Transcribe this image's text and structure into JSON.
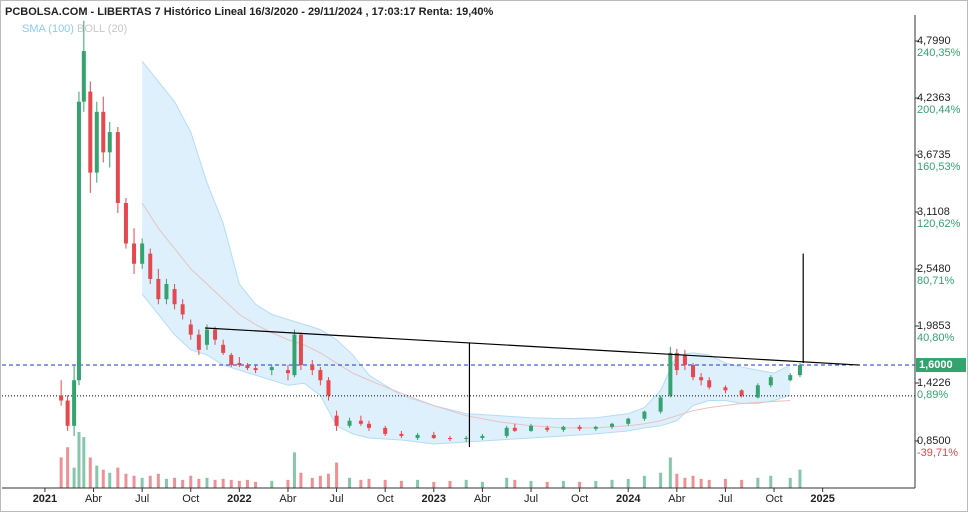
{
  "chart_data": {
    "type": "candlestick",
    "title": "PCBOLSA.COM - LIBERTAS 7 Histórico Lineal 16/3/2020 - 29/11/2024 , 17:03:17 Renta: 19,40%",
    "up_color": "#34a36f",
    "down_color": "#e5484d",
    "x": [
      1.0,
      1.4,
      1.8,
      2.1,
      2.4,
      2.8,
      3.2,
      3.6,
      4.0,
      4.5,
      5.0,
      5.5,
      6.0,
      6.5,
      7.0,
      7.5,
      8.0,
      8.5,
      9.0,
      9.5,
      10.0,
      10.5,
      11.0,
      11.5,
      12.0,
      12.5,
      13.0,
      14.0,
      15.0,
      15.4,
      15.8,
      16.5,
      17.0,
      17.5,
      18.0,
      18.8,
      19.5,
      20.0,
      21.0,
      22.0,
      23.0,
      24.0,
      25.0,
      26.0,
      27.0,
      28.5,
      29.0,
      30.0,
      31.0,
      32.0,
      33.0,
      34.0,
      35.0,
      36.0,
      37.0,
      38.0,
      38.6,
      39.0,
      39.5,
      40.0,
      40.5,
      41.0,
      42.0,
      43.0,
      44.0,
      44.8,
      46.0,
      46.6
    ],
    "open": [
      1.3,
      1.25,
      1.0,
      1.45,
      4.2,
      4.3,
      3.5,
      4.1,
      3.7,
      3.9,
      3.2,
      2.8,
      2.6,
      2.7,
      2.45,
      2.25,
      2.35,
      2.2,
      2.0,
      1.9,
      1.8,
      1.95,
      1.8,
      1.7,
      1.62,
      1.6,
      1.57,
      1.55,
      1.55,
      1.5,
      1.9,
      1.6,
      1.55,
      1.45,
      1.1,
      1.0,
      1.05,
      1.02,
      0.98,
      0.92,
      0.88,
      0.91,
      0.88,
      0.87,
      0.88,
      0.9,
      0.98,
      0.95,
      0.98,
      0.96,
      0.99,
      0.97,
      0.99,
      1.02,
      1.07,
      1.14,
      1.3,
      1.72,
      1.7,
      1.6,
      1.48,
      1.45,
      1.38,
      1.35,
      1.28,
      1.4,
      1.45,
      1.5
    ],
    "high": [
      1.45,
      1.3,
      1.6,
      4.3,
      5.0,
      4.4,
      4.2,
      4.25,
      4.0,
      3.95,
      3.25,
      2.95,
      2.85,
      2.75,
      2.55,
      2.45,
      2.4,
      2.25,
      2.05,
      1.95,
      2.0,
      1.98,
      1.85,
      1.72,
      1.68,
      1.62,
      1.6,
      1.6,
      1.6,
      1.95,
      1.92,
      1.65,
      1.58,
      1.48,
      1.15,
      1.08,
      1.1,
      1.05,
      1.0,
      0.95,
      0.93,
      0.94,
      0.9,
      0.9,
      0.92,
      1.0,
      1.02,
      1.02,
      1.0,
      1.0,
      1.01,
      1.0,
      1.03,
      1.08,
      1.15,
      1.3,
      1.78,
      1.76,
      1.75,
      1.62,
      1.52,
      1.48,
      1.4,
      1.36,
      1.42,
      1.5,
      1.52,
      1.62
    ],
    "low": [
      1.2,
      0.95,
      0.9,
      1.4,
      4.1,
      3.3,
      3.4,
      3.6,
      3.55,
      3.1,
      2.75,
      2.5,
      2.55,
      2.4,
      2.2,
      2.2,
      2.15,
      2.05,
      1.85,
      1.7,
      1.75,
      1.8,
      1.7,
      1.58,
      1.58,
      1.55,
      1.52,
      1.5,
      1.45,
      1.48,
      1.55,
      1.5,
      1.4,
      1.25,
      0.95,
      0.98,
      1.0,
      0.95,
      0.9,
      0.88,
      0.86,
      0.87,
      0.85,
      0.84,
      0.86,
      0.88,
      0.94,
      0.94,
      0.94,
      0.94,
      0.95,
      0.95,
      0.97,
      1.0,
      1.05,
      1.12,
      1.28,
      1.5,
      1.55,
      1.45,
      1.4,
      1.36,
      1.32,
      1.28,
      1.27,
      1.38,
      1.44,
      1.48
    ],
    "close": [
      1.25,
      1.0,
      1.45,
      4.2,
      4.7,
      3.5,
      4.1,
      3.7,
      3.9,
      3.2,
      2.8,
      2.6,
      2.8,
      2.45,
      2.25,
      2.4,
      2.2,
      2.1,
      1.9,
      1.75,
      1.95,
      1.85,
      1.72,
      1.6,
      1.6,
      1.57,
      1.55,
      1.58,
      1.52,
      1.9,
      1.6,
      1.55,
      1.45,
      1.3,
      1.0,
      1.05,
      1.02,
      0.98,
      0.92,
      0.9,
      0.91,
      0.88,
      0.87,
      0.88,
      0.9,
      0.98,
      0.95,
      1.0,
      0.96,
      0.99,
      0.97,
      0.99,
      1.02,
      1.07,
      1.14,
      1.28,
      1.72,
      1.55,
      1.6,
      1.48,
      1.45,
      1.38,
      1.35,
      1.3,
      1.4,
      1.48,
      1.5,
      1.6
    ],
    "volume": [
      30,
      40,
      20,
      55,
      50,
      30,
      22,
      18,
      15,
      20,
      14,
      12,
      10,
      12,
      14,
      9,
      10,
      8,
      12,
      9,
      10,
      8,
      9,
      8,
      7,
      8,
      6,
      7,
      8,
      35,
      15,
      10,
      12,
      14,
      25,
      10,
      8,
      9,
      8,
      7,
      8,
      6,
      7,
      8,
      6,
      10,
      8,
      7,
      6,
      7,
      6,
      7,
      8,
      9,
      12,
      15,
      30,
      14,
      10,
      12,
      9,
      8,
      9,
      8,
      10,
      12,
      10,
      18
    ],
    "xlim": [
      -2.65,
      53.7
    ],
    "xticks": [
      {
        "value": 0,
        "label": "2021"
      },
      {
        "value": 3,
        "label": "Abr"
      },
      {
        "value": 6,
        "label": "Jul"
      },
      {
        "value": 9,
        "label": "Oct"
      },
      {
        "value": 12,
        "label": "2022"
      },
      {
        "value": 15,
        "label": "Abr"
      },
      {
        "value": 18,
        "label": "Jul"
      },
      {
        "value": 21,
        "label": "Oct"
      },
      {
        "value": 24,
        "label": "2023"
      },
      {
        "value": 27,
        "label": "Abr"
      },
      {
        "value": 30,
        "label": "Jul"
      },
      {
        "value": 33,
        "label": "Oct"
      },
      {
        "value": 36,
        "label": "2024"
      },
      {
        "value": 39,
        "label": "Abr"
      },
      {
        "value": 42,
        "label": "Jul"
      },
      {
        "value": 45,
        "label": "Oct"
      },
      {
        "value": 48,
        "label": "2025"
      }
    ],
    "ylim": [
      0.386,
      5.056
    ],
    "yticks": [
      {
        "value": 4.799,
        "label": "4,7990"
      },
      {
        "value": 4.2363,
        "label": "4,2363"
      },
      {
        "value": 3.6735,
        "label": "3,6735"
      },
      {
        "value": 3.1108,
        "label": "3,1108"
      },
      {
        "value": 2.548,
        "label": "2,5480"
      },
      {
        "value": 1.9853,
        "label": "1,9853"
      },
      {
        "value": 1.4226,
        "label": "1,4226"
      },
      {
        "value": 0.85,
        "label": "0,8500"
      }
    ],
    "y2lim": [
      -72.6,
      258.6
    ],
    "y2ticks": [
      {
        "value": 240.35,
        "label": "240,35%"
      },
      {
        "value": 200.44,
        "label": "200,44%"
      },
      {
        "value": 160.53,
        "label": "160,53%"
      },
      {
        "value": 120.62,
        "label": "120,62%"
      },
      {
        "value": 80.71,
        "label": "80,71%"
      },
      {
        "value": 40.8,
        "label": "40,80%"
      },
      {
        "value": 0.89,
        "label": "0,89%"
      },
      {
        "value": -39.71,
        "label": "-39,71%"
      }
    ],
    "last_price": {
      "value": 1.6,
      "label": "1,6000"
    },
    "support_level": 1.295,
    "sma": {
      "name": "SMA (100)",
      "color": "#8ccbf0",
      "x": [
        6,
        7,
        8,
        9,
        10,
        11,
        12,
        13,
        14,
        15,
        16,
        17,
        18,
        19,
        20,
        22,
        24,
        26,
        28,
        30,
        32,
        34,
        36,
        37,
        38,
        39,
        40,
        41,
        42,
        43,
        44,
        45,
        46
      ],
      "values": [
        3.2,
        2.95,
        2.75,
        2.55,
        2.4,
        2.25,
        2.1,
        2.0,
        1.92,
        1.85,
        1.8,
        1.72,
        1.62,
        1.52,
        1.45,
        1.32,
        1.2,
        1.1,
        1.04,
        1.0,
        0.98,
        0.98,
        1.0,
        1.02,
        1.05,
        1.1,
        1.15,
        1.18,
        1.2,
        1.22,
        1.23,
        1.24,
        1.25
      ]
    },
    "bollinger": {
      "name": "BOLL (20)",
      "color": "#c8c8c8",
      "fill": "#d6ecfb",
      "x": [
        6,
        7,
        8,
        9,
        10,
        11,
        12,
        13,
        14,
        15,
        16,
        17,
        18,
        19,
        20,
        22,
        24,
        26,
        28,
        30,
        32,
        34,
        36,
        37,
        38,
        39,
        40,
        41,
        42,
        43,
        44,
        45,
        46
      ],
      "upper": [
        4.6,
        4.4,
        4.2,
        3.9,
        3.4,
        3.0,
        2.4,
        2.2,
        2.1,
        2.05,
        2.0,
        1.95,
        1.85,
        1.7,
        1.5,
        1.3,
        1.2,
        1.12,
        1.1,
        1.08,
        1.07,
        1.08,
        1.12,
        1.18,
        1.35,
        1.7,
        1.72,
        1.7,
        1.62,
        1.58,
        1.55,
        1.52,
        1.6
      ],
      "lower": [
        2.3,
        2.1,
        1.9,
        1.75,
        1.7,
        1.6,
        1.55,
        1.5,
        1.45,
        1.4,
        1.42,
        1.3,
        1.0,
        0.92,
        0.88,
        0.86,
        0.82,
        0.84,
        0.86,
        0.88,
        0.9,
        0.92,
        0.95,
        0.98,
        1.0,
        1.05,
        1.2,
        1.25,
        1.25,
        1.22,
        1.22,
        1.25,
        1.3
      ]
    },
    "drawings": [
      {
        "x": [
          9.88,
          50.3
        ],
        "y": [
          1.966,
          1.6
        ]
      },
      {
        "x": [
          26.2,
          26.2
        ],
        "y": [
          1.818,
          0.79
        ]
      },
      {
        "x": [
          46.8,
          46.8
        ],
        "y": [
          1.62,
          2.7
        ]
      }
    ]
  }
}
